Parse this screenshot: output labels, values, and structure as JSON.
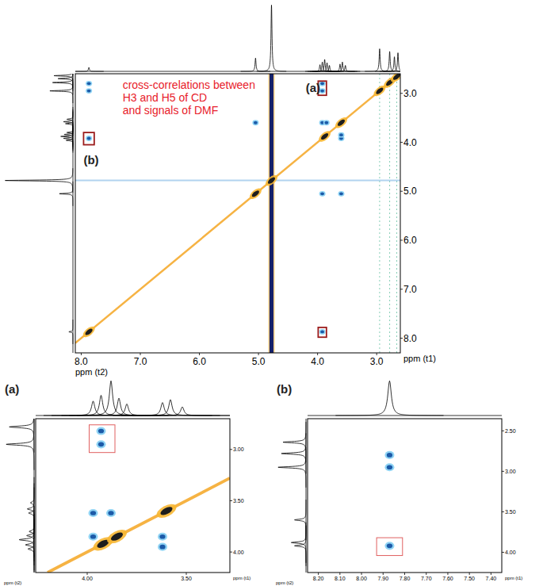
{
  "chart_data": [
    {
      "type": "nmr_2d",
      "x_label": "ppm (t2)",
      "y_label": "ppm (t1)",
      "xlim": [
        8.1,
        2.6
      ],
      "ylim": [
        2.6,
        8.3
      ],
      "xticks": [
        {
          "value": 8,
          "label": "8.0"
        },
        {
          "value": 7,
          "label": "7.0"
        },
        {
          "value": 6,
          "label": "6.0"
        },
        {
          "value": 5,
          "label": "5.0"
        },
        {
          "value": 4,
          "label": "4.0"
        },
        {
          "value": 3,
          "label": "3.0"
        }
      ],
      "yticks": [
        {
          "value": 3,
          "label": "3.0"
        },
        {
          "value": 4,
          "label": "4.0"
        },
        {
          "value": 5,
          "label": "5.0"
        },
        {
          "value": 6,
          "label": "6.0"
        },
        {
          "value": 7,
          "label": "7.0"
        },
        {
          "value": 8,
          "label": "8.0"
        }
      ],
      "peaks": [
        {
          "ppm": 7.87,
          "height": 6
        },
        {
          "ppm": 5.05,
          "height": 20
        },
        {
          "ppm": 4.78,
          "height": 100
        },
        {
          "ppm": 3.96,
          "height": 10
        },
        {
          "ppm": 3.92,
          "height": 14
        },
        {
          "ppm": 3.88,
          "height": 18
        },
        {
          "ppm": 3.84,
          "height": 13
        },
        {
          "ppm": 3.8,
          "height": 9
        },
        {
          "ppm": 3.62,
          "height": 11
        },
        {
          "ppm": 3.58,
          "height": 14
        },
        {
          "ppm": 3.53,
          "height": 9
        },
        {
          "ppm": 2.95,
          "height": 34
        },
        {
          "ppm": 2.78,
          "height": 30
        },
        {
          "ppm": 2.7,
          "height": 22
        },
        {
          "ppm": 2.64,
          "height": 28
        }
      ],
      "solvent_ppm": 4.78,
      "t1_noise": [
        2.95,
        2.78,
        2.66
      ],
      "diagonal_peaks": [
        7.87,
        5.05,
        4.78,
        3.88,
        3.6,
        2.95,
        2.78,
        2.66
      ],
      "cross_peaks": [
        {
          "x": 3.92,
          "y": 2.95
        },
        {
          "x": 3.92,
          "y": 2.8
        },
        {
          "x": 7.87,
          "y": 2.95
        },
        {
          "x": 7.87,
          "y": 2.8
        },
        {
          "x": 7.87,
          "y": 3.92
        },
        {
          "x": 3.92,
          "y": 7.87
        },
        {
          "x": 3.92,
          "y": 3.6
        },
        {
          "x": 3.85,
          "y": 3.6
        },
        {
          "x": 3.6,
          "y": 3.92
        },
        {
          "x": 3.6,
          "y": 3.85
        },
        {
          "x": 5.05,
          "y": 3.6
        },
        {
          "x": 3.92,
          "y": 5.05
        },
        {
          "x": 3.6,
          "y": 5.05
        }
      ],
      "boxes": [
        {
          "x": [
            3.99,
            3.85
          ],
          "y": [
            2.75,
            3.04
          ]
        },
        {
          "x": [
            7.96,
            7.78
          ],
          "y": [
            3.8,
            4.05
          ]
        },
        {
          "x": [
            3.99,
            3.85
          ],
          "y": [
            7.78,
            7.98
          ]
        }
      ],
      "annotations": [
        {
          "lines": [
            "cross-correlations between",
            "H3 and H5 of CD",
            "and signals of DMF"
          ],
          "x": 7.3,
          "y": 2.9,
          "color": "#e8202a"
        },
        {
          "lines": [
            "(a)"
          ],
          "x": 4.2,
          "y": 2.98,
          "color": "#222222"
        },
        {
          "lines": [
            "(b)"
          ],
          "x": 7.96,
          "y": 4.45,
          "color": "#222222"
        }
      ]
    },
    {
      "type": "nmr_2d",
      "title": "(a)",
      "x_label": "ppm (t2)",
      "y_label": "ppm (t1)",
      "xlim": [
        4.26,
        3.28
      ],
      "ylim": [
        2.7,
        4.2
      ],
      "xticks": [
        {
          "value": 4,
          "label": "4.00"
        },
        {
          "value": 3.5,
          "label": "3.50"
        }
      ],
      "yticks": [
        {
          "value": 3,
          "label": "3.00"
        },
        {
          "value": 3.5,
          "label": "3.50"
        },
        {
          "value": 4,
          "label": "4.00"
        }
      ],
      "peaks": [
        {
          "ppm": 3.97,
          "height": 10
        },
        {
          "ppm": 3.93,
          "height": 14
        },
        {
          "ppm": 3.88,
          "height": 24
        },
        {
          "ppm": 3.84,
          "height": 12
        },
        {
          "ppm": 3.8,
          "height": 8
        },
        {
          "ppm": 3.62,
          "height": 9
        },
        {
          "ppm": 3.58,
          "height": 11
        },
        {
          "ppm": 3.52,
          "height": 6
        },
        {
          "ppm": 2.95,
          "height": 45
        },
        {
          "ppm": 2.78,
          "height": 40
        }
      ],
      "diagonal_peaks": [
        3.92,
        3.85,
        3.6
      ],
      "cross_peaks": [
        {
          "x": 3.93,
          "y": 2.95
        },
        {
          "x": 3.93,
          "y": 2.82
        },
        {
          "x": 3.97,
          "y": 3.62
        },
        {
          "x": 3.88,
          "y": 3.62
        },
        {
          "x": 3.62,
          "y": 3.85
        },
        {
          "x": 3.62,
          "y": 3.95
        },
        {
          "x": 3.97,
          "y": 3.85
        }
      ],
      "boxes": [
        {
          "x": [
            3.99,
            3.86
          ],
          "y": [
            2.76,
            3.03
          ]
        }
      ]
    },
    {
      "type": "nmr_2d",
      "title": "(b)",
      "x_label": "ppm (t2)",
      "y_label": "ppm (t1)",
      "xlim": [
        8.25,
        7.35
      ],
      "ylim": [
        2.35,
        4.25
      ],
      "xticks": [
        {
          "value": 8.2,
          "label": "8.20"
        },
        {
          "value": 8.1,
          "label": "8.10"
        },
        {
          "value": 8.0,
          "label": "8.00"
        },
        {
          "value": 7.9,
          "label": "7.90"
        },
        {
          "value": 7.8,
          "label": "7.80"
        },
        {
          "value": 7.7,
          "label": "7.70"
        },
        {
          "value": 7.6,
          "label": "7.60"
        },
        {
          "value": 7.5,
          "label": "7.50"
        },
        {
          "value": 7.4,
          "label": "7.40"
        }
      ],
      "yticks": [
        {
          "value": 2.5,
          "label": "2.50"
        },
        {
          "value": 3,
          "label": "3.00"
        },
        {
          "value": 3.5,
          "label": "3.50"
        },
        {
          "value": 4,
          "label": "4.00"
        }
      ],
      "peaks": [
        {
          "ppm": 7.87,
          "height": 30
        },
        {
          "ppm": 3.92,
          "height": 14
        },
        {
          "ppm": 3.88,
          "height": 18
        },
        {
          "ppm": 3.6,
          "height": 14
        },
        {
          "ppm": 2.95,
          "height": 34
        },
        {
          "ppm": 2.78,
          "height": 30
        },
        {
          "ppm": 2.64,
          "height": 28
        }
      ],
      "cross_peaks": [
        {
          "x": 7.87,
          "y": 2.95
        },
        {
          "x": 7.87,
          "y": 2.8
        },
        {
          "x": 7.87,
          "y": 3.92
        }
      ],
      "boxes": [
        {
          "x": [
            7.93,
            7.81
          ],
          "y": [
            3.82,
            4.04
          ]
        }
      ]
    }
  ]
}
